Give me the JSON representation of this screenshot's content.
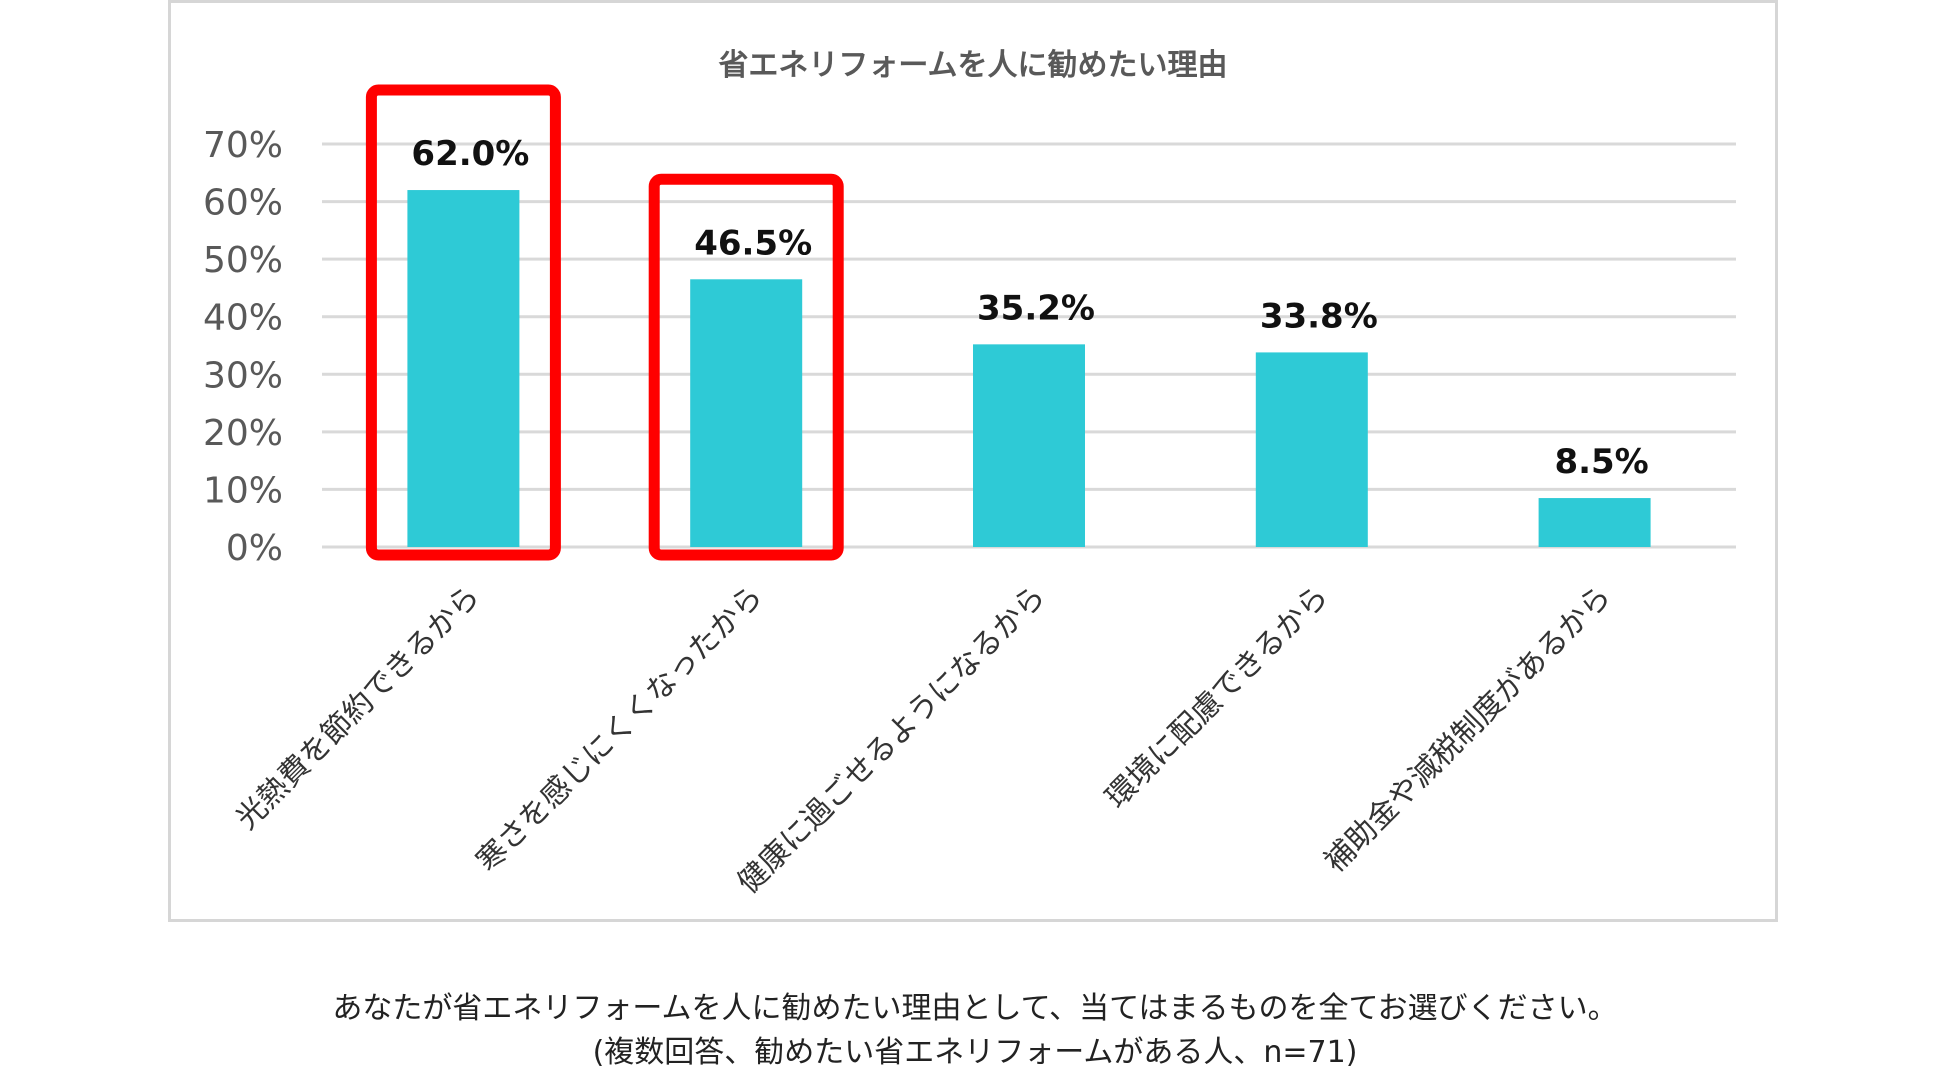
{
  "chart_data": {
    "type": "bar",
    "title": "省エネリフォームを人に勧めたい理由",
    "categories": [
      "光熱費を節約できるから",
      "寒さを感じにくくなったから",
      "健康に過ごせるようになるから",
      "環境に配慮できるから",
      "補助金や減税制度があるから"
    ],
    "values": [
      62.0,
      46.5,
      35.2,
      33.8,
      8.5
    ],
    "data_labels": [
      "62.0%",
      "46.5%",
      "35.2%",
      "33.8%",
      "8.5%"
    ],
    "ylim": [
      0,
      70
    ],
    "yticks": [
      0,
      10,
      20,
      30,
      40,
      50,
      60,
      70
    ],
    "ytick_labels": [
      "0%",
      "10%",
      "20%",
      "30%",
      "40%",
      "50%",
      "60%",
      "70%"
    ],
    "highlighted_indices": [
      0,
      1
    ],
    "grid": true,
    "colors": {
      "bar": "#2ecad6",
      "highlight": "#ff0000",
      "grid": "#d9d9d9"
    }
  },
  "footer": {
    "question": "あなたが省エネリフォームを人に勧めたい理由として、当てはまるものを全てお選びください。",
    "note": "(複数回答、勧めたい省エネリフォームがある人、n=71)"
  }
}
